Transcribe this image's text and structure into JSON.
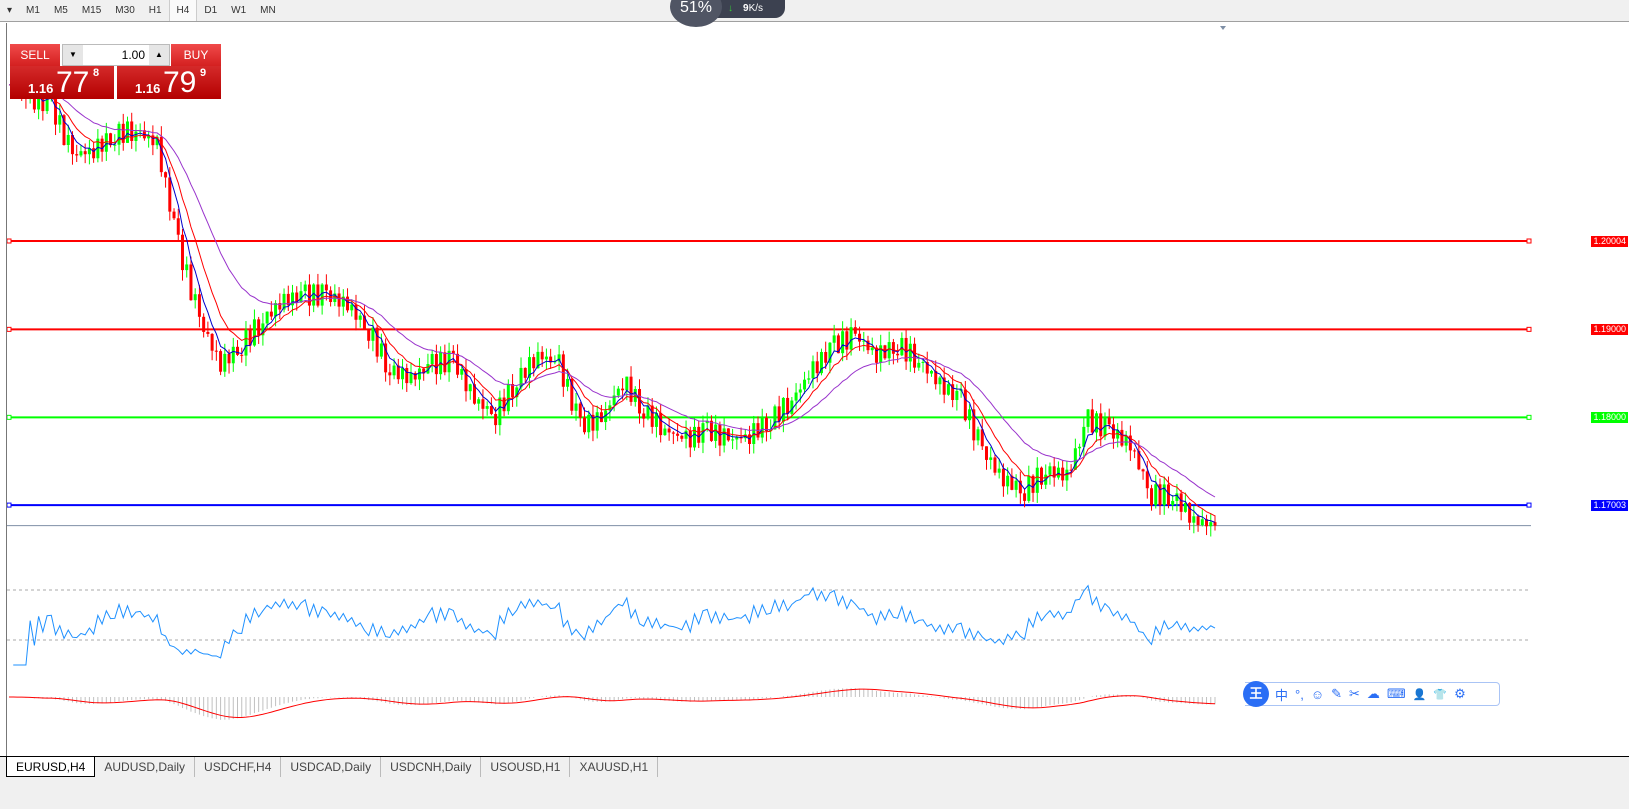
{
  "toolbar": {
    "timeframes": [
      "M1",
      "M5",
      "M15",
      "M30",
      "H1",
      "H4",
      "D1",
      "W1",
      "MN"
    ],
    "active": "H4"
  },
  "net_widget": {
    "percent": "51%",
    "speed": "9",
    "unit": "K/s"
  },
  "trade_panel": {
    "sell_label": "SELL",
    "buy_label": "BUY",
    "lot": "1.00",
    "sell": {
      "prefix": "1.16",
      "big": "77",
      "pip": "8"
    },
    "buy": {
      "prefix": "1.16",
      "big": "79",
      "pip": "9"
    }
  },
  "levels": [
    {
      "price": 1.20004,
      "label": "1.20004",
      "color": "#ff0000"
    },
    {
      "price": 1.19,
      "label": "1.19000",
      "color": "#ff0000"
    },
    {
      "price": 1.18,
      "label": "1.18000",
      "color": "#00ff00"
    },
    {
      "price": 1.17003,
      "label": "1.17003",
      "color": "#0000ff"
    }
  ],
  "ime_toolbar": {
    "logo": "王",
    "items": [
      "中",
      "°,",
      "☺",
      "✎",
      "✂",
      "☁",
      "⌨",
      "👤",
      "👕",
      "⚙"
    ]
  },
  "tabs": [
    "EURUSD,H4",
    "AUDUSD,Daily",
    "USDCHF,H4",
    "USDCAD,Daily",
    "USDCNH,Daily",
    "USOUSD,H1",
    "XAUUSD,H1"
  ],
  "active_tab": "EURUSD,H4",
  "chart_data": {
    "type": "candlestick",
    "symbol": "EURUSD",
    "timeframe": "H4",
    "current_price": 1.1677,
    "colors": {
      "up": "#00ff00",
      "down": "#ff0000",
      "ma_fast": "#0000cc",
      "ma_mid": "#ff0000",
      "ma_slow": "#9933cc",
      "rsi": "#1e90ff",
      "macd_hist": "#c0c0c0",
      "macd_signal": "#ff0000"
    },
    "closes": [
      1.2178,
      1.2161,
      1.2155,
      1.2098,
      1.2104,
      1.2121,
      1.2127,
      1.211,
      1.1996,
      1.1911,
      1.186,
      1.1882,
      1.1911,
      1.1933,
      1.1939,
      1.1939,
      1.1928,
      1.1899,
      1.1854,
      1.1845,
      1.186,
      1.1865,
      1.182,
      1.1803,
      1.1842,
      1.1871,
      1.186,
      1.1791,
      1.1797,
      1.1842,
      1.1808,
      1.1786,
      1.1774,
      1.1786,
      1.1774,
      1.178,
      1.1797,
      1.182,
      1.1854,
      1.1882,
      1.1893,
      1.1871,
      1.1882,
      1.1865,
      1.1837,
      1.182,
      1.1763,
      1.1729,
      1.1717,
      1.174,
      1.1734,
      1.1797,
      1.1786,
      1.1768,
      1.1712,
      1.1712,
      1.1683,
      1.1677
    ]
  }
}
